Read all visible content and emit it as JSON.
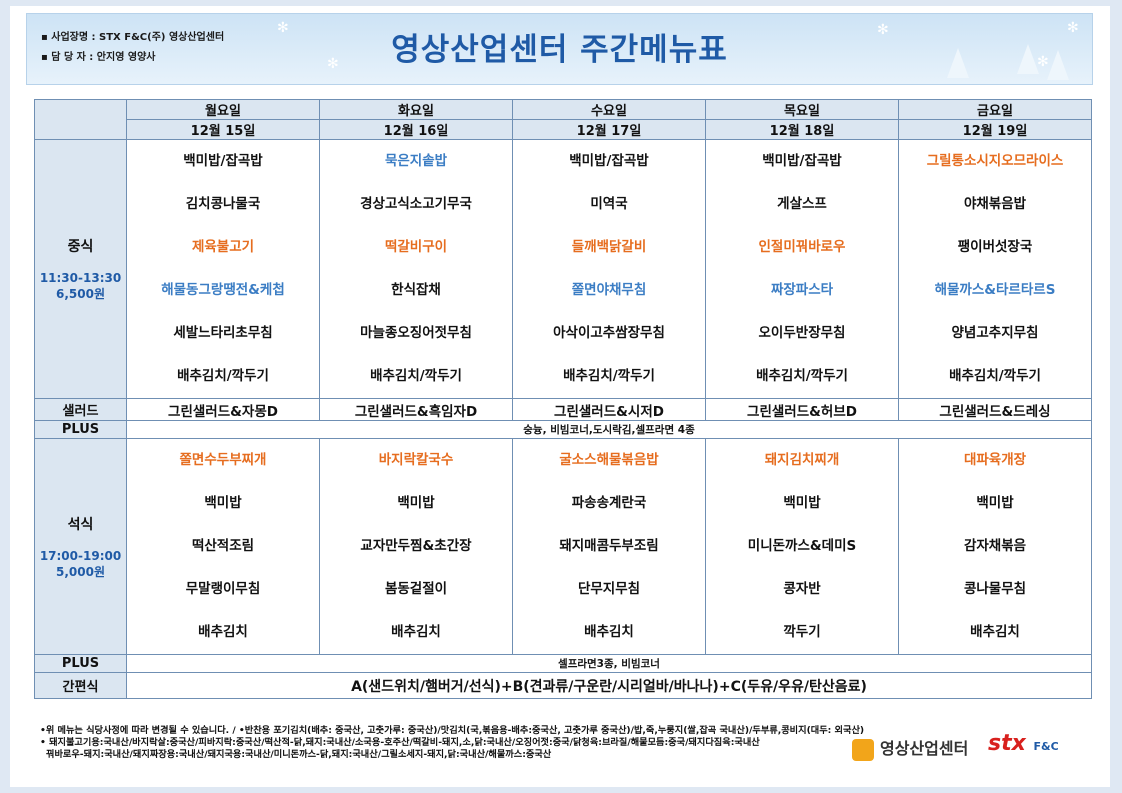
{
  "header": {
    "info_line1": "사업장명 : STX F&C(주) 영상산업센터",
    "info_line2": "담 당 자  : 안지영 영양사",
    "title": "영상산업센터 주간메뉴표"
  },
  "days": [
    {
      "day": "월요일",
      "date": "12월 15일"
    },
    {
      "day": "화요일",
      "date": "12월 16일"
    },
    {
      "day": "수요일",
      "date": "12월 17일"
    },
    {
      "day": "목요일",
      "date": "12월 18일"
    },
    {
      "day": "금요일",
      "date": "12월 19일"
    }
  ],
  "lunch": {
    "label": "중식",
    "time": "11:30-13:30",
    "price": "6,500원",
    "menus": [
      [
        "백미밥/잡곡밥",
        "김치콩나물국",
        "제육불고기",
        "해물동그랑땡전&케첩",
        "세발느타리초무침",
        "배추김치/깍두기"
      ],
      [
        "묵은지솥밥",
        "경상고식소고기무국",
        "떡갈비구이",
        "한식잡채",
        "마늘종오징어젓무침",
        "배추김치/깍두기"
      ],
      [
        "백미밥/잡곡밥",
        "미역국",
        "들깨백닭갈비",
        "쫄면야채무침",
        "아삭이고추쌈장무침",
        "배추김치/깍두기"
      ],
      [
        "백미밥/잡곡밥",
        "게살스프",
        "인절미꿔바로우",
        "짜장파스타",
        "오이두반장무침",
        "배추김치/깍두기"
      ],
      [
        "그릴통소시지오므라이스",
        "야채볶음밥",
        "팽이버섯장국",
        "해물까스&타르타르S",
        "양념고추지무침",
        "배추김치/깍두기"
      ]
    ],
    "colors": [
      [
        "k",
        "k",
        "o",
        "b",
        "k",
        "k"
      ],
      [
        "b",
        "k",
        "o",
        "k",
        "k",
        "k"
      ],
      [
        "k",
        "k",
        "o",
        "b",
        "k",
        "k"
      ],
      [
        "k",
        "k",
        "o",
        "b",
        "k",
        "k"
      ],
      [
        "o",
        "k",
        "k",
        "b",
        "k",
        "k"
      ]
    ]
  },
  "salad": {
    "label": "샐러드",
    "items": [
      "그린샐러드&자몽D",
      "그린샐러드&흑임자D",
      "그린샐러드&시저D",
      "그린샐러드&허브D",
      "그린샐러드&드레싱"
    ]
  },
  "plus1": {
    "label": "PLUS",
    "text": "숭늉, 비빔코너,도시락김,셀프라면 4종"
  },
  "dinner": {
    "label": "석식",
    "time": "17:00-19:00",
    "price": "5,000원",
    "menus": [
      [
        "쫄면수두부찌개",
        "백미밥",
        "떡산적조림",
        "무말랭이무침",
        "배추김치"
      ],
      [
        "바지락칼국수",
        "백미밥",
        "교자만두찜&초간장",
        "봄동겉절이",
        "배추김치"
      ],
      [
        "굴소스해물볶음밥",
        "파송송계란국",
        "돼지매콤두부조림",
        "단무지무침",
        "배추김치"
      ],
      [
        "돼지김치찌개",
        "백미밥",
        "미니돈까스&데미S",
        "콩자반",
        "깍두기"
      ],
      [
        "대파육개장",
        "백미밥",
        "감자채볶음",
        "콩나물무침",
        "배추김치"
      ]
    ],
    "colors": [
      [
        "o",
        "k",
        "k",
        "k",
        "k"
      ],
      [
        "o",
        "k",
        "k",
        "k",
        "k"
      ],
      [
        "o",
        "k",
        "k",
        "k",
        "k"
      ],
      [
        "o",
        "k",
        "k",
        "k",
        "k"
      ],
      [
        "o",
        "k",
        "k",
        "k",
        "k"
      ]
    ]
  },
  "plus2": {
    "label": "PLUS",
    "text": "셀프라면3종, 비빔코너"
  },
  "snack": {
    "label": "간편식",
    "text": "A(샌드위치/햄버거/선식)+B(견과류/구운란/시리얼바/바나나)+C(두유/우유/탄산음료)"
  },
  "footer": {
    "line1": "•위 메뉴는 식당사정에 따라 변경될 수 있습니다. / •반찬용 포기김치(배추: 중국산, 고춧가루: 중국산)/맛김치(국,볶음용-배추:중국산, 고춧가루 중국산)/밥,죽,누룽지(쌀,잡곡 국내산)/두부류,콩비지(대두: 외국산)",
    "line2": "• 돼지불고기용:국내산/바지락살:중국산/피바지락:중국산/떡산적-닭,돼지:국내산/소국용-호주산/떡갈비-돼지,소,닭:국내산/오징어젓:중국/닭청육:브라질/해물모듬:중국/돼지다짐육:국내산",
    "line3": "꿔바로우-돼지:국내산/돼지짜장용:국내산/돼지국용:국내산/미니돈까스-닭,돼지:국내산/그릴소세지-돼지,닭:국내산/해물까스:중국산"
  },
  "logos": {
    "center_logo": "영상산업센터",
    "stx_logo": "stx",
    "stx_sub": "F&C"
  },
  "colors": {
    "orange": "#e66d1f",
    "blue": "#3b7dc4",
    "header_bg": "#dbe6f1",
    "title": "#1f5aa6"
  }
}
